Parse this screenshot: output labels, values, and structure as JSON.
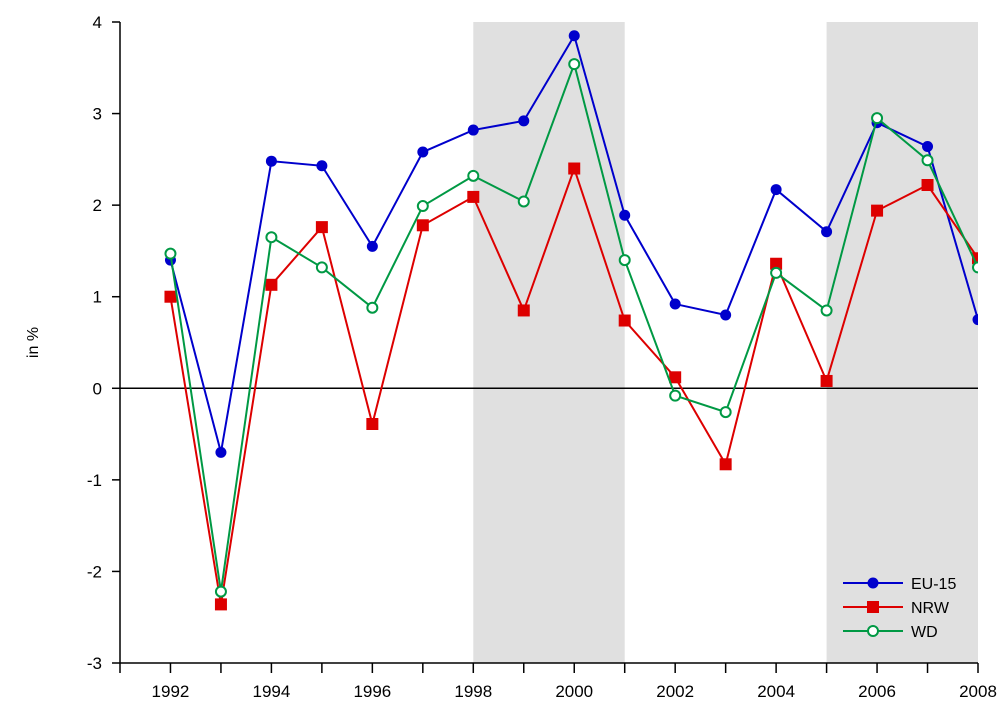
{
  "chart_data": {
    "type": "line",
    "title": "",
    "xlabel": "",
    "ylabel": "in %",
    "xlim": [
      1991,
      2008
    ],
    "ylim": [
      -3,
      4
    ],
    "x_ticks": [
      1992,
      1994,
      1996,
      1998,
      2000,
      2002,
      2004,
      2006,
      2008
    ],
    "x_tick_labels": [
      "1992",
      "1994",
      "1996",
      "1998",
      "2000",
      "2002",
      "2004",
      "2006",
      "2008"
    ],
    "y_ticks": [
      -3,
      -2,
      -1,
      0,
      1,
      2,
      3,
      4
    ],
    "y_tick_labels": [
      "-3",
      "-2",
      "-1",
      "0",
      "1",
      "2",
      "3",
      "4"
    ],
    "zero_line": true,
    "shaded_periods": [
      [
        1998,
        2001
      ],
      [
        2005,
        2008
      ]
    ],
    "shade_color": "#e0e0e0",
    "legend_position": "bottom-right",
    "x": [
      1992,
      1993,
      1994,
      1995,
      1996,
      1997,
      1998,
      1999,
      2000,
      2001,
      2002,
      2003,
      2004,
      2005,
      2006,
      2007,
      2008
    ],
    "series": [
      {
        "name": "EU-15",
        "color": "#0000cc",
        "marker": "filled-circle",
        "values": [
          1.4,
          -0.7,
          2.48,
          2.43,
          1.55,
          2.58,
          2.82,
          2.92,
          3.85,
          1.89,
          0.92,
          0.8,
          2.17,
          1.71,
          2.9,
          2.64,
          0.75
        ]
      },
      {
        "name": "NRW",
        "color": "#dd0000",
        "marker": "filled-square",
        "values": [
          1.0,
          -2.36,
          1.13,
          1.76,
          -0.39,
          1.78,
          2.09,
          0.85,
          2.4,
          0.74,
          0.12,
          -0.83,
          1.36,
          0.08,
          1.94,
          2.22,
          1.42
        ]
      },
      {
        "name": "WD",
        "color": "#009944",
        "marker": "open-circle",
        "values": [
          1.47,
          -2.22,
          1.65,
          1.32,
          0.88,
          1.99,
          2.32,
          2.04,
          3.54,
          1.4,
          -0.08,
          -0.26,
          1.26,
          0.85,
          2.95,
          2.49,
          1.32
        ]
      }
    ]
  }
}
